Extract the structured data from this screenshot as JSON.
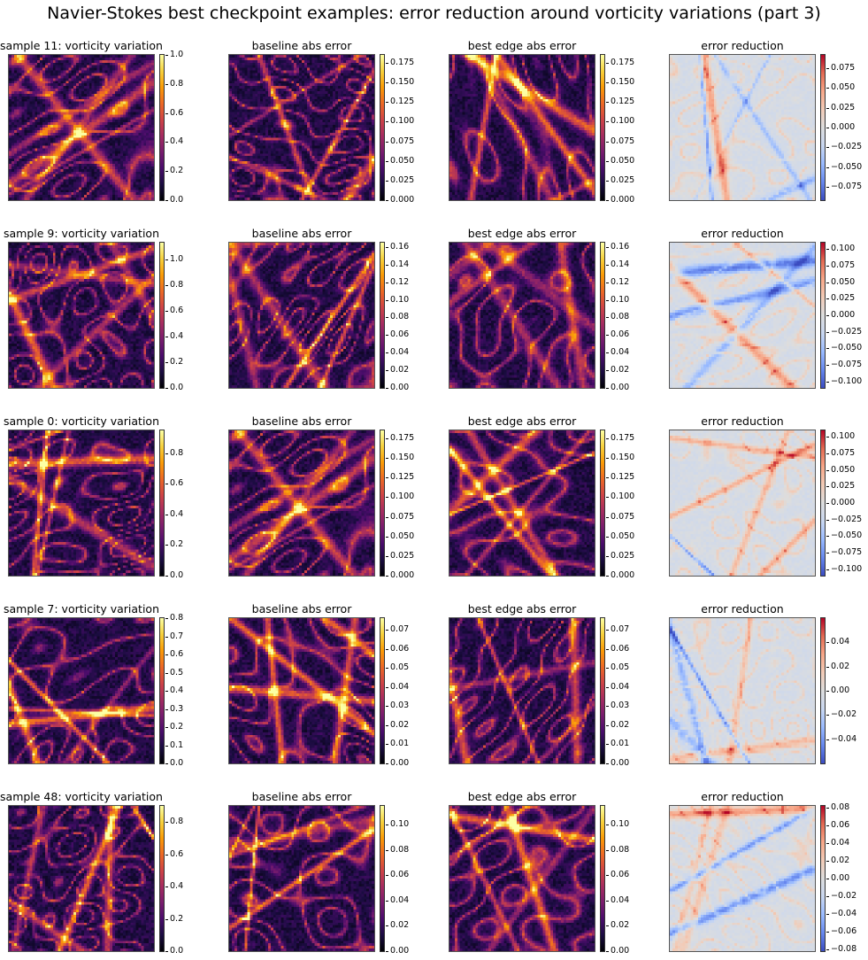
{
  "figure": {
    "title": "Navier-Stokes best checkpoint examples: error reduction around vorticity variations (part 3)"
  },
  "chart_data": {
    "type": "heatmap",
    "layout": {
      "rows": 5,
      "cols": 4
    },
    "colormaps": {
      "inferno": [
        "#000004",
        "#1b0c41",
        "#4a0c6b",
        "#781c6d",
        "#a52c60",
        "#cf4446",
        "#ed6925",
        "#fb9b06",
        "#f7d13d",
        "#fcffa4"
      ],
      "coolwarm": [
        "#3b4cc0",
        "#6788ee",
        "#9abbff",
        "#c9d7f0",
        "#dddddd",
        "#f2cbb7",
        "#f7a789",
        "#e36a53",
        "#b40426"
      ]
    },
    "rows": [
      {
        "panels": [
          {
            "title": "sample 11: vorticity variation",
            "cmap": "inferno",
            "range": [
              0,
              1.0
            ],
            "ticks": [
              "0.0",
              "0.2",
              "0.4",
              "0.6",
              "0.8",
              "1.0"
            ],
            "tick_values": [
              0,
              0.2,
              0.4,
              0.6,
              0.8,
              1.0
            ],
            "seed": 11
          },
          {
            "title": "baseline abs error",
            "cmap": "inferno",
            "range": [
              0,
              0.185
            ],
            "ticks": [
              "0.000",
              "0.025",
              "0.050",
              "0.075",
              "0.100",
              "0.125",
              "0.150",
              "0.175"
            ],
            "tick_values": [
              0,
              0.025,
              0.05,
              0.075,
              0.1,
              0.125,
              0.15,
              0.175
            ],
            "seed": 111
          },
          {
            "title": "best edge abs error",
            "cmap": "inferno",
            "range": [
              0,
              0.185
            ],
            "ticks": [
              "0.000",
              "0.025",
              "0.050",
              "0.075",
              "0.100",
              "0.125",
              "0.150",
              "0.175"
            ],
            "tick_values": [
              0,
              0.025,
              0.05,
              0.075,
              0.1,
              0.125,
              0.15,
              0.175
            ],
            "seed": 112
          },
          {
            "title": "error reduction",
            "cmap": "coolwarm",
            "range": [
              -0.092,
              0.092
            ],
            "ticks": [
              "−0.075",
              "−0.050",
              "−0.025",
              "0.000",
              "0.025",
              "0.050",
              "0.075"
            ],
            "tick_values": [
              -0.075,
              -0.05,
              -0.025,
              0,
              0.025,
              0.05,
              0.075
            ],
            "seed": 113
          }
        ]
      },
      {
        "panels": [
          {
            "title": "sample 9: vorticity variation",
            "cmap": "inferno",
            "range": [
              0,
              1.13
            ],
            "ticks": [
              "0.0",
              "0.2",
              "0.4",
              "0.6",
              "0.8",
              "1.0"
            ],
            "tick_values": [
              0,
              0.2,
              0.4,
              0.6,
              0.8,
              1.0
            ],
            "seed": 9
          },
          {
            "title": "baseline abs error",
            "cmap": "inferno",
            "range": [
              0,
              0.165
            ],
            "ticks": [
              "0.00",
              "0.02",
              "0.04",
              "0.06",
              "0.08",
              "0.10",
              "0.12",
              "0.14",
              "0.16"
            ],
            "tick_values": [
              0,
              0.02,
              0.04,
              0.06,
              0.08,
              0.1,
              0.12,
              0.14,
              0.16
            ],
            "seed": 91
          },
          {
            "title": "best edge abs error",
            "cmap": "inferno",
            "range": [
              0,
              0.165
            ],
            "ticks": [
              "0.00",
              "0.02",
              "0.04",
              "0.06",
              "0.08",
              "0.10",
              "0.12",
              "0.14",
              "0.16"
            ],
            "tick_values": [
              0,
              0.02,
              0.04,
              0.06,
              0.08,
              0.1,
              0.12,
              0.14,
              0.16
            ],
            "seed": 92
          },
          {
            "title": "error reduction",
            "cmap": "coolwarm",
            "range": [
              -0.11,
              0.11
            ],
            "ticks": [
              "−0.100",
              "−0.075",
              "−0.050",
              "−0.025",
              "0.000",
              "0.025",
              "0.050",
              "0.075",
              "0.100"
            ],
            "tick_values": [
              -0.1,
              -0.075,
              -0.05,
              -0.025,
              0,
              0.025,
              0.05,
              0.075,
              0.1
            ],
            "seed": 93
          }
        ]
      },
      {
        "panels": [
          {
            "title": "sample 0: vorticity variation",
            "cmap": "inferno",
            "range": [
              0,
              0.95
            ],
            "ticks": [
              "0.0",
              "0.2",
              "0.4",
              "0.6",
              "0.8"
            ],
            "tick_values": [
              0,
              0.2,
              0.4,
              0.6,
              0.8
            ],
            "seed": 1
          },
          {
            "title": "baseline abs error",
            "cmap": "inferno",
            "range": [
              0,
              0.185
            ],
            "ticks": [
              "0.000",
              "0.025",
              "0.050",
              "0.075",
              "0.100",
              "0.125",
              "0.150",
              "0.175"
            ],
            "tick_values": [
              0,
              0.025,
              0.05,
              0.075,
              0.1,
              0.125,
              0.15,
              0.175
            ],
            "seed": 11
          },
          {
            "title": "best edge abs error",
            "cmap": "inferno",
            "range": [
              0,
              0.185
            ],
            "ticks": [
              "0.000",
              "0.025",
              "0.050",
              "0.075",
              "0.100",
              "0.125",
              "0.150",
              "0.175"
            ],
            "tick_values": [
              0,
              0.025,
              0.05,
              0.075,
              0.1,
              0.125,
              0.15,
              0.175
            ],
            "seed": 12
          },
          {
            "title": "error reduction",
            "cmap": "coolwarm",
            "range": [
              -0.11,
              0.11
            ],
            "ticks": [
              "−0.100",
              "−0.075",
              "−0.050",
              "−0.025",
              "0.000",
              "0.025",
              "0.050",
              "0.075",
              "0.100"
            ],
            "tick_values": [
              -0.1,
              -0.075,
              -0.05,
              -0.025,
              0,
              0.025,
              0.05,
              0.075,
              0.1
            ],
            "seed": 13
          }
        ]
      },
      {
        "panels": [
          {
            "title": "sample 7: vorticity variation",
            "cmap": "inferno",
            "range": [
              0,
              0.8
            ],
            "ticks": [
              "0.0",
              "0.1",
              "0.2",
              "0.3",
              "0.4",
              "0.5",
              "0.6",
              "0.7",
              "0.8"
            ],
            "tick_values": [
              0,
              0.1,
              0.2,
              0.3,
              0.4,
              0.5,
              0.6,
              0.7,
              0.8
            ],
            "seed": 7
          },
          {
            "title": "baseline abs error",
            "cmap": "inferno",
            "range": [
              0,
              0.076
            ],
            "ticks": [
              "0.00",
              "0.01",
              "0.02",
              "0.03",
              "0.04",
              "0.05",
              "0.06",
              "0.07"
            ],
            "tick_values": [
              0,
              0.01,
              0.02,
              0.03,
              0.04,
              0.05,
              0.06,
              0.07
            ],
            "seed": 71
          },
          {
            "title": "best edge abs error",
            "cmap": "inferno",
            "range": [
              0,
              0.076
            ],
            "ticks": [
              "0.00",
              "0.01",
              "0.02",
              "0.03",
              "0.04",
              "0.05",
              "0.06",
              "0.07"
            ],
            "tick_values": [
              0,
              0.01,
              0.02,
              0.03,
              0.04,
              0.05,
              0.06,
              0.07
            ],
            "seed": 72
          },
          {
            "title": "error reduction",
            "cmap": "coolwarm",
            "range": [
              -0.06,
              0.06
            ],
            "ticks": [
              "−0.04",
              "−0.02",
              "0.00",
              "0.02",
              "0.04"
            ],
            "tick_values": [
              -0.04,
              -0.02,
              0,
              0.02,
              0.04
            ],
            "seed": 73
          }
        ]
      },
      {
        "panels": [
          {
            "title": "sample 48: vorticity variation",
            "cmap": "inferno",
            "range": [
              0,
              0.9
            ],
            "ticks": [
              "0.0",
              "0.2",
              "0.4",
              "0.6",
              "0.8"
            ],
            "tick_values": [
              0,
              0.2,
              0.4,
              0.6,
              0.8
            ],
            "seed": 48
          },
          {
            "title": "baseline abs error",
            "cmap": "inferno",
            "range": [
              0,
              0.115
            ],
            "ticks": [
              "0.00",
              "0.02",
              "0.04",
              "0.06",
              "0.08",
              "0.10"
            ],
            "tick_values": [
              0,
              0.02,
              0.04,
              0.06,
              0.08,
              0.1
            ],
            "seed": 481
          },
          {
            "title": "best edge abs error",
            "cmap": "inferno",
            "range": [
              0,
              0.115
            ],
            "ticks": [
              "0.00",
              "0.02",
              "0.04",
              "0.06",
              "0.08",
              "0.10"
            ],
            "tick_values": [
              0,
              0.02,
              0.04,
              0.06,
              0.08,
              0.1
            ],
            "seed": 482
          },
          {
            "title": "error reduction",
            "cmap": "coolwarm",
            "range": [
              -0.082,
              0.082
            ],
            "ticks": [
              "−0.08",
              "−0.06",
              "−0.04",
              "−0.02",
              "0.00",
              "0.02",
              "0.04",
              "0.06",
              "0.08"
            ],
            "tick_values": [
              -0.08,
              -0.06,
              -0.04,
              -0.02,
              0,
              0.02,
              0.04,
              0.06,
              0.08
            ],
            "seed": 483
          }
        ]
      }
    ]
  }
}
